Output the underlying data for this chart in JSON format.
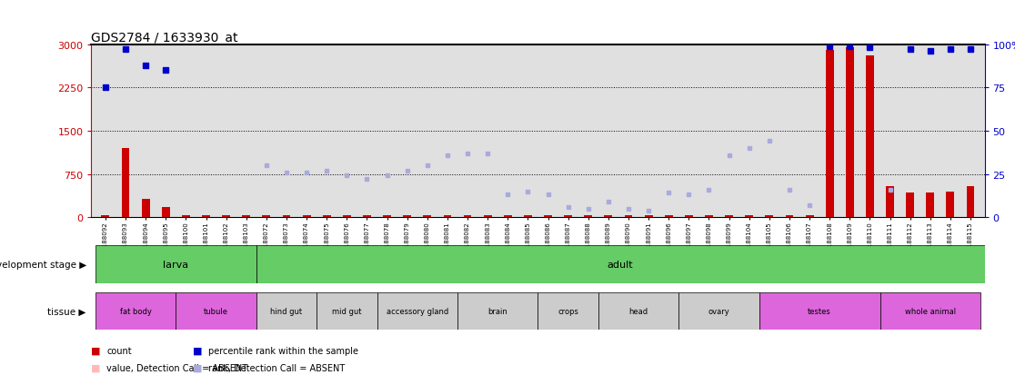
{
  "title": "GDS2784 / 1633930_at",
  "samples": [
    "GSM188092",
    "GSM188093",
    "GSM188094",
    "GSM188095",
    "GSM188100",
    "GSM188101",
    "GSM188102",
    "GSM188103",
    "GSM188072",
    "GSM188073",
    "GSM188074",
    "GSM188075",
    "GSM188076",
    "GSM188077",
    "GSM188078",
    "GSM188079",
    "GSM188080",
    "GSM188081",
    "GSM188082",
    "GSM188083",
    "GSM188084",
    "GSM188085",
    "GSM188086",
    "GSM188087",
    "GSM188088",
    "GSM188089",
    "GSM188090",
    "GSM188091",
    "GSM188096",
    "GSM188097",
    "GSM188098",
    "GSM188099",
    "GSM188104",
    "GSM188105",
    "GSM188106",
    "GSM188107",
    "GSM188108",
    "GSM188109",
    "GSM188110",
    "GSM188111",
    "GSM188112",
    "GSM188113",
    "GSM188114",
    "GSM188115"
  ],
  "count_values": [
    30,
    1200,
    320,
    180,
    30,
    30,
    30,
    30,
    30,
    30,
    30,
    30,
    30,
    30,
    30,
    30,
    30,
    30,
    30,
    30,
    30,
    30,
    30,
    30,
    30,
    30,
    30,
    30,
    30,
    30,
    30,
    30,
    30,
    30,
    30,
    30,
    2900,
    2950,
    2800,
    530,
    430,
    430,
    440,
    530
  ],
  "percentile_present": [
    75,
    97,
    88,
    85,
    null,
    null,
    null,
    null,
    null,
    null,
    null,
    null,
    null,
    null,
    null,
    null,
    null,
    null,
    null,
    null,
    null,
    null,
    null,
    null,
    null,
    null,
    null,
    null,
    null,
    null,
    null,
    null,
    null,
    null,
    null,
    null,
    99,
    99,
    98,
    null,
    97,
    96,
    97,
    97
  ],
  "percentile_absent": [
    null,
    null,
    null,
    null,
    null,
    null,
    null,
    null,
    30,
    26,
    26,
    27,
    24,
    22,
    24,
    27,
    30,
    36,
    37,
    37,
    13,
    15,
    13,
    6,
    5,
    9,
    5,
    4,
    14,
    13,
    16,
    36,
    40,
    44,
    16,
    7,
    null,
    null,
    null,
    16,
    null,
    null,
    null,
    null
  ],
  "ylim_left": [
    0,
    3000
  ],
  "ylim_right": [
    0,
    100
  ],
  "yticks_left": [
    0,
    750,
    1500,
    2250,
    3000
  ],
  "yticks_right": [
    0,
    25,
    50,
    75,
    100
  ],
  "ytick_labels_left": [
    "0",
    "750",
    "1500",
    "2250",
    "3000"
  ],
  "ytick_labels_right": [
    "0",
    "25",
    "50",
    "75",
    "100%"
  ],
  "bar_color": "#cc0000",
  "dot_present_color": "#0000cc",
  "dot_absent_color": "#aaaadd",
  "background_color": "#ffffff",
  "axis_bg_color": "#e0e0e0",
  "green_color": "#66cc66",
  "tissue_pink": "#dd66dd",
  "tissue_gray": "#cccccc",
  "tissues": [
    {
      "label": "fat body",
      "start": 0,
      "end": 3,
      "color": "#dd66dd"
    },
    {
      "label": "tubule",
      "start": 4,
      "end": 7,
      "color": "#dd66dd"
    },
    {
      "label": "hind gut",
      "start": 8,
      "end": 10,
      "color": "#cccccc"
    },
    {
      "label": "mid gut",
      "start": 11,
      "end": 13,
      "color": "#cccccc"
    },
    {
      "label": "accessory gland",
      "start": 14,
      "end": 17,
      "color": "#cccccc"
    },
    {
      "label": "brain",
      "start": 18,
      "end": 21,
      "color": "#cccccc"
    },
    {
      "label": "crops",
      "start": 22,
      "end": 24,
      "color": "#cccccc"
    },
    {
      "label": "head",
      "start": 25,
      "end": 28,
      "color": "#cccccc"
    },
    {
      "label": "ovary",
      "start": 29,
      "end": 32,
      "color": "#cccccc"
    },
    {
      "label": "testes",
      "start": 33,
      "end": 38,
      "color": "#dd66dd"
    },
    {
      "label": "whole animal",
      "start": 39,
      "end": 43,
      "color": "#dd66dd"
    }
  ]
}
